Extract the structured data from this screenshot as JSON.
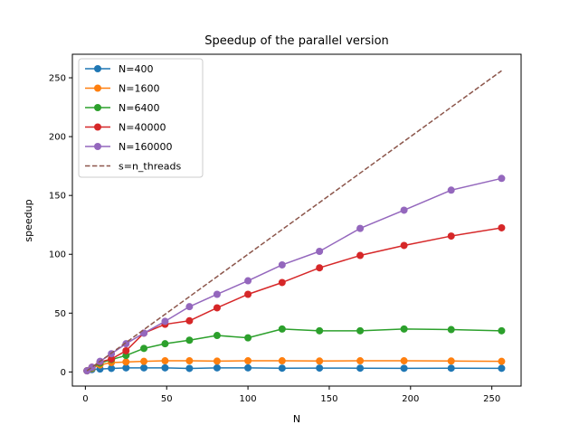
{
  "chart_data": {
    "type": "line",
    "title": "Speedup of the parallel version",
    "xlabel": "N",
    "ylabel": "speedup",
    "xlim": [
      -8,
      268
    ],
    "ylim": [
      -12,
      270
    ],
    "xticks": [
      0,
      50,
      100,
      150,
      200,
      250
    ],
    "yticks": [
      0,
      50,
      100,
      150,
      200,
      250
    ],
    "x": [
      1,
      4,
      9,
      16,
      25,
      36,
      49,
      64,
      81,
      100,
      121,
      144,
      169,
      196,
      225,
      256
    ],
    "grid": false,
    "legend_position": "upper-left",
    "series": [
      {
        "name": "N=400",
        "color": "#1f77b4",
        "marker": "circle",
        "linestyle": "solid",
        "values": [
          1,
          2,
          2.5,
          3,
          3.5,
          3.5,
          3.5,
          3,
          3.5,
          3.5,
          3.2,
          3.3,
          3.2,
          3.1,
          3.2,
          3.1
        ]
      },
      {
        "name": "N=1600",
        "color": "#ff7f0e",
        "marker": "circle",
        "linestyle": "solid",
        "values": [
          1,
          3,
          6,
          8,
          8.5,
          9,
          9.5,
          9.5,
          9.2,
          9.5,
          9.5,
          9.3,
          9.5,
          9.5,
          9.3,
          9
        ]
      },
      {
        "name": "N=6400",
        "color": "#2ca02c",
        "marker": "circle",
        "linestyle": "solid",
        "values": [
          1,
          3.5,
          7.5,
          10.5,
          14,
          20,
          24,
          27,
          31,
          29,
          36.5,
          35,
          35,
          36.5,
          36,
          35
        ]
      },
      {
        "name": "N=40000",
        "color": "#d62728",
        "marker": "circle",
        "linestyle": "solid",
        "values": [
          1,
          4,
          8.5,
          11,
          18,
          33,
          40.5,
          43.5,
          54.5,
          66,
          76,
          88.5,
          99,
          107.5,
          115.5,
          122.5
        ]
      },
      {
        "name": "N=160000",
        "color": "#9467bd",
        "marker": "circle",
        "linestyle": "solid",
        "values": [
          1,
          4,
          9,
          15.5,
          24,
          33,
          43,
          55.5,
          66,
          77.5,
          91,
          102.5,
          122,
          137.5,
          154.5,
          164.5
        ]
      },
      {
        "name": "s=n_threads",
        "color": "#8c564b",
        "marker": "none",
        "linestyle": "dashed",
        "values": [
          1,
          4,
          9,
          16,
          25,
          36,
          49,
          64,
          81,
          100,
          121,
          144,
          169,
          196,
          225,
          256
        ]
      }
    ]
  }
}
